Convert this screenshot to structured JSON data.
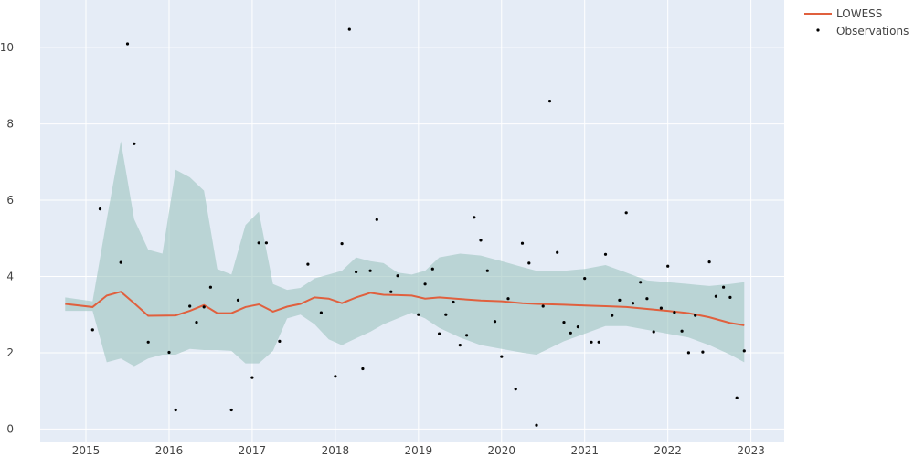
{
  "chart_data": {
    "type": "line",
    "title": "",
    "xlabel": "",
    "ylabel": "",
    "xlim": [
      2014.45,
      2023.4
    ],
    "ylim": [
      -0.35,
      11.25
    ],
    "x_ticks": [
      {
        "value": 2015,
        "label": "2015"
      },
      {
        "value": 2016,
        "label": "2016"
      },
      {
        "value": 2017,
        "label": "2017"
      },
      {
        "value": 2018,
        "label": "2018"
      },
      {
        "value": 2019,
        "label": "2019"
      },
      {
        "value": 2020,
        "label": "2020"
      },
      {
        "value": 2021,
        "label": "2021"
      },
      {
        "value": 2022,
        "label": "2022"
      },
      {
        "value": 2023,
        "label": "2023"
      }
    ],
    "y_ticks": [
      {
        "value": 0,
        "label": "0"
      },
      {
        "value": 2,
        "label": "2"
      },
      {
        "value": 4,
        "label": "4"
      },
      {
        "value": 6,
        "label": "6"
      },
      {
        "value": 8,
        "label": "8"
      },
      {
        "value": 10,
        "label": "10"
      }
    ],
    "grid": true,
    "legend_position": "top-right",
    "colors": {
      "plot_bg": "#e5ecf6",
      "grid": "#ffffff",
      "lowess": "#e0603e",
      "band": "#9cc4c0",
      "points": "#000000"
    },
    "lowess": {
      "name": "LOWESS",
      "x": [
        2014.75,
        2015.08,
        2015.25,
        2015.42,
        2015.58,
        2015.75,
        2016.08,
        2016.25,
        2016.42,
        2016.58,
        2016.75,
        2016.92,
        2017.08,
        2017.25,
        2017.42,
        2017.58,
        2017.75,
        2017.92,
        2018.08,
        2018.25,
        2018.42,
        2018.58,
        2018.75,
        2018.92,
        2019.08,
        2019.25,
        2019.5,
        2019.75,
        2020.0,
        2020.25,
        2020.42,
        2020.75,
        2021.0,
        2021.25,
        2021.5,
        2021.75,
        2022.0,
        2022.25,
        2022.5,
        2022.75,
        2022.92
      ],
      "y": [
        3.28,
        3.2,
        3.5,
        3.6,
        3.3,
        2.97,
        2.98,
        3.1,
        3.25,
        3.04,
        3.04,
        3.2,
        3.27,
        3.08,
        3.21,
        3.28,
        3.45,
        3.42,
        3.3,
        3.45,
        3.57,
        3.52,
        3.51,
        3.5,
        3.42,
        3.45,
        3.41,
        3.37,
        3.35,
        3.3,
        3.28,
        3.26,
        3.24,
        3.22,
        3.2,
        3.15,
        3.1,
        3.04,
        2.93,
        2.78,
        2.72
      ]
    },
    "band": {
      "x": [
        2014.75,
        2015.08,
        2015.25,
        2015.42,
        2015.58,
        2015.75,
        2015.92,
        2016.08,
        2016.25,
        2016.42,
        2016.58,
        2016.75,
        2016.92,
        2017.08,
        2017.25,
        2017.42,
        2017.58,
        2017.75,
        2017.92,
        2018.08,
        2018.25,
        2018.42,
        2018.58,
        2018.75,
        2018.92,
        2019.08,
        2019.25,
        2019.5,
        2019.75,
        2020.0,
        2020.25,
        2020.42,
        2020.75,
        2021.0,
        2021.25,
        2021.5,
        2021.75,
        2022.0,
        2022.25,
        2022.5,
        2022.75,
        2022.92
      ],
      "upper": [
        3.45,
        3.35,
        5.5,
        7.55,
        5.5,
        4.7,
        4.6,
        6.8,
        6.6,
        6.25,
        4.2,
        4.05,
        5.35,
        5.7,
        3.8,
        3.65,
        3.7,
        3.95,
        4.05,
        4.15,
        4.5,
        4.4,
        4.35,
        4.1,
        4.05,
        4.15,
        4.5,
        4.6,
        4.55,
        4.4,
        4.25,
        4.15,
        4.15,
        4.2,
        4.3,
        4.1,
        3.9,
        3.85,
        3.8,
        3.75,
        3.8,
        3.85
      ],
      "lower": [
        3.1,
        3.1,
        1.75,
        1.85,
        1.65,
        1.85,
        1.95,
        1.95,
        2.1,
        2.07,
        2.07,
        2.05,
        1.72,
        1.72,
        2.05,
        2.9,
        3.0,
        2.75,
        2.35,
        2.2,
        2.38,
        2.55,
        2.75,
        2.9,
        3.05,
        2.9,
        2.65,
        2.4,
        2.2,
        2.1,
        2.0,
        1.95,
        2.3,
        2.5,
        2.7,
        2.7,
        2.6,
        2.5,
        2.4,
        2.2,
        1.95,
        1.75
      ]
    },
    "observations": {
      "name": "Observations",
      "x": [
        2015.08,
        2015.17,
        2015.42,
        2015.5,
        2015.58,
        2015.75,
        2016.0,
        2016.08,
        2016.25,
        2016.33,
        2016.42,
        2016.5,
        2016.75,
        2016.83,
        2017.0,
        2017.08,
        2017.17,
        2017.33,
        2017.67,
        2017.83,
        2018.0,
        2018.08,
        2018.17,
        2018.25,
        2018.33,
        2018.42,
        2018.5,
        2018.67,
        2018.75,
        2019.0,
        2019.08,
        2019.17,
        2019.25,
        2019.33,
        2019.42,
        2019.5,
        2019.58,
        2019.67,
        2019.75,
        2019.83,
        2019.92,
        2020.0,
        2020.08,
        2020.17,
        2020.25,
        2020.33,
        2020.42,
        2020.5,
        2020.58,
        2020.67,
        2020.75,
        2020.83,
        2020.92,
        2021.0,
        2021.08,
        2021.17,
        2021.25,
        2021.33,
        2021.42,
        2021.5,
        2021.58,
        2021.67,
        2021.75,
        2021.83,
        2021.92,
        2022.0,
        2022.08,
        2022.17,
        2022.25,
        2022.33,
        2022.42,
        2022.5,
        2022.58,
        2022.67,
        2022.75,
        2022.83,
        2022.92
      ],
      "y": [
        2.6,
        5.77,
        4.37,
        10.1,
        7.48,
        2.28,
        2.01,
        0.5,
        3.22,
        2.8,
        3.2,
        3.72,
        0.5,
        3.38,
        1.35,
        4.88,
        4.88,
        2.3,
        4.32,
        3.05,
        1.38,
        4.86,
        10.48,
        4.12,
        1.58,
        4.15,
        5.49,
        3.6,
        4.02,
        3.0,
        3.8,
        4.2,
        2.5,
        3.0,
        3.33,
        2.2,
        2.46,
        5.55,
        4.95,
        4.15,
        2.82,
        1.9,
        3.42,
        1.05,
        4.87,
        4.35,
        0.1,
        3.22,
        8.6,
        4.63,
        2.8,
        2.52,
        2.68,
        3.95,
        2.28,
        2.28,
        4.58,
        2.98,
        3.38,
        5.67,
        3.3,
        3.85,
        3.42,
        2.55,
        3.17,
        4.27,
        3.06,
        2.57,
        2.0,
        2.98,
        2.02,
        4.38,
        3.48,
        3.72,
        3.45,
        0.82,
        2.05
      ]
    }
  }
}
